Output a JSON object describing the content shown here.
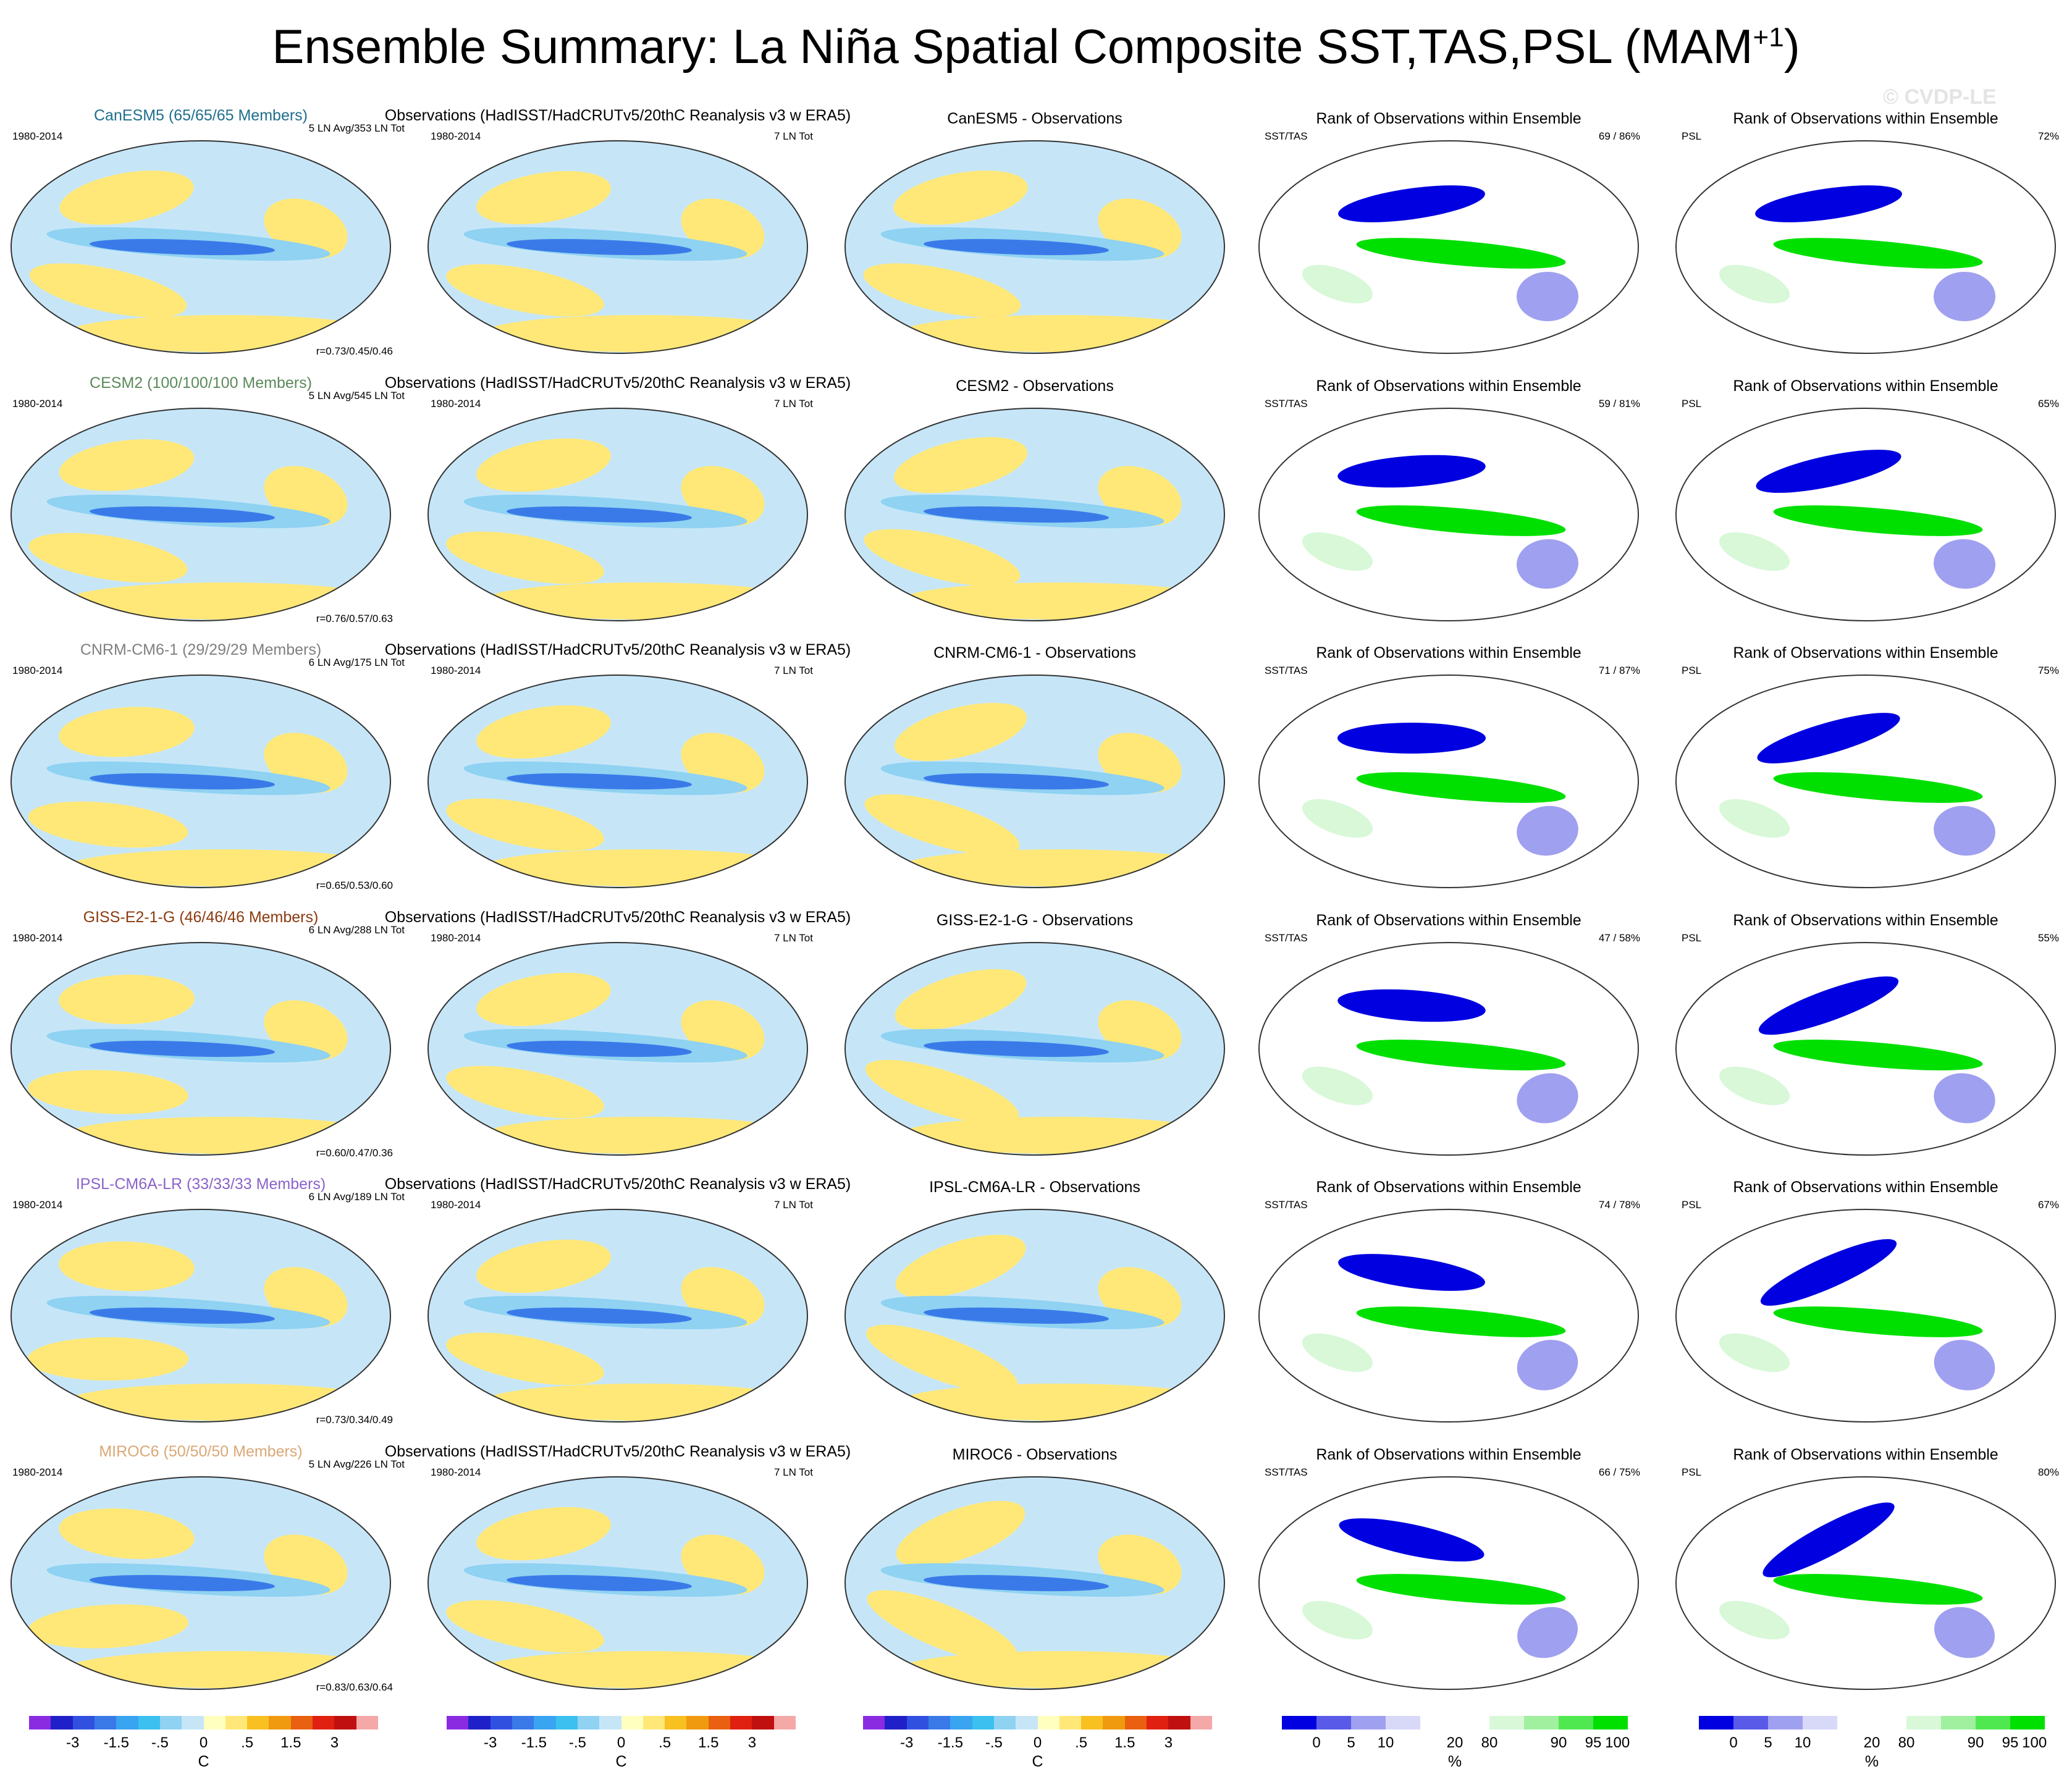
{
  "title_main": "Ensemble Summary: La Niña Spatial Composite SST,TAS,PSL (MAM",
  "title_sup": "+1",
  "title_end": ")",
  "watermark": "© CVDP-LE",
  "period": "1980-2014",
  "obs_title": "Observations (HadISST/HadCRUTv5/20thC Reanalysis v3 w ERA5)",
  "obs_count": "7 LN Tot",
  "rank_title": "Rank of Observations within Ensemble",
  "rank_var_a": "SST/TAS",
  "rank_var_b": "PSL",
  "rows": [
    {
      "model": "CanESM5 (65/65/65 Members)",
      "model_color": "#1f6e8c",
      "ln": "5 LN Avg/353 LN Tot",
      "r": "r=0.73/0.45/0.46",
      "diff": "CanESM5 - Observations",
      "rank_a": "69 /  86%",
      "rank_b": "72%"
    },
    {
      "model": "CESM2 (100/100/100 Members)",
      "model_color": "#5b8a5b",
      "ln": "5 LN Avg/545 LN Tot",
      "r": "r=0.76/0.57/0.63",
      "diff": "CESM2 - Observations",
      "rank_a": "59 /  81%",
      "rank_b": "65%"
    },
    {
      "model": "CNRM-CM6-1 (29/29/29 Members)",
      "model_color": "#808080",
      "ln": "6 LN Avg/175 LN Tot",
      "r": "r=0.65/0.53/0.60",
      "diff": "CNRM-CM6-1 - Observations",
      "rank_a": "71 /  87%",
      "rank_b": "75%"
    },
    {
      "model": "GISS-E2-1-G (46/46/46 Members)",
      "model_color": "#8b3a0f",
      "ln": "6 LN Avg/288 LN Tot",
      "r": "r=0.60/0.47/0.36",
      "diff": "GISS-E2-1-G - Observations",
      "rank_a": "47 /  58%",
      "rank_b": "55%"
    },
    {
      "model": "IPSL-CM6A-LR (33/33/33 Members)",
      "model_color": "#8a63c9",
      "ln": "6 LN Avg/189 LN Tot",
      "r": "r=0.73/0.34/0.49",
      "diff": "IPSL-CM6A-LR - Observations",
      "rank_a": "74 /  78%",
      "rank_b": "67%"
    },
    {
      "model": "MIROC6 (50/50/50 Members)",
      "model_color": "#d9a877",
      "ln": "5 LN Avg/226 LN Tot",
      "r": "r=0.83/0.63/0.64",
      "diff": "MIROC6 - Observations",
      "rank_a": "66 /  75%",
      "rank_b": "80%"
    }
  ],
  "temp_colorbar": {
    "colors": [
      "#8a2be2",
      "#2020c8",
      "#3050e0",
      "#3a7ae8",
      "#39a4f0",
      "#3cc0f0",
      "#8fd2f2",
      "#c6e6f8",
      "#ffffc0",
      "#ffe878",
      "#f8c020",
      "#f09a10",
      "#e86010",
      "#e02010",
      "#c01010",
      "#f4a8a8"
    ],
    "ticks": [
      "-3",
      "-1.5",
      "-.5",
      "0",
      ".5",
      "1.5",
      "3"
    ],
    "unit": "C"
  },
  "rank_colorbar": {
    "colors": [
      "#0000e0",
      "#5a5ae8",
      "#a0a0f0",
      "#d8d8f8",
      "#ffffff",
      "#ffffff",
      "#d8f8d8",
      "#a0f0a0",
      "#50e850",
      "#00e000"
    ],
    "ticks": [
      "0",
      "5",
      "10",
      "20",
      "80",
      "90",
      "95",
      "100"
    ],
    "unit": "%"
  },
  "map_legend": {
    "temp_map_colors": {
      "ocean_warm": "#ffe878",
      "ocean_cool": "#8fd2f2",
      "la_nina_tongue": "#3a7ae8"
    },
    "rank_map_colors": {
      "low": "#0000e0",
      "high": "#00e000"
    }
  }
}
